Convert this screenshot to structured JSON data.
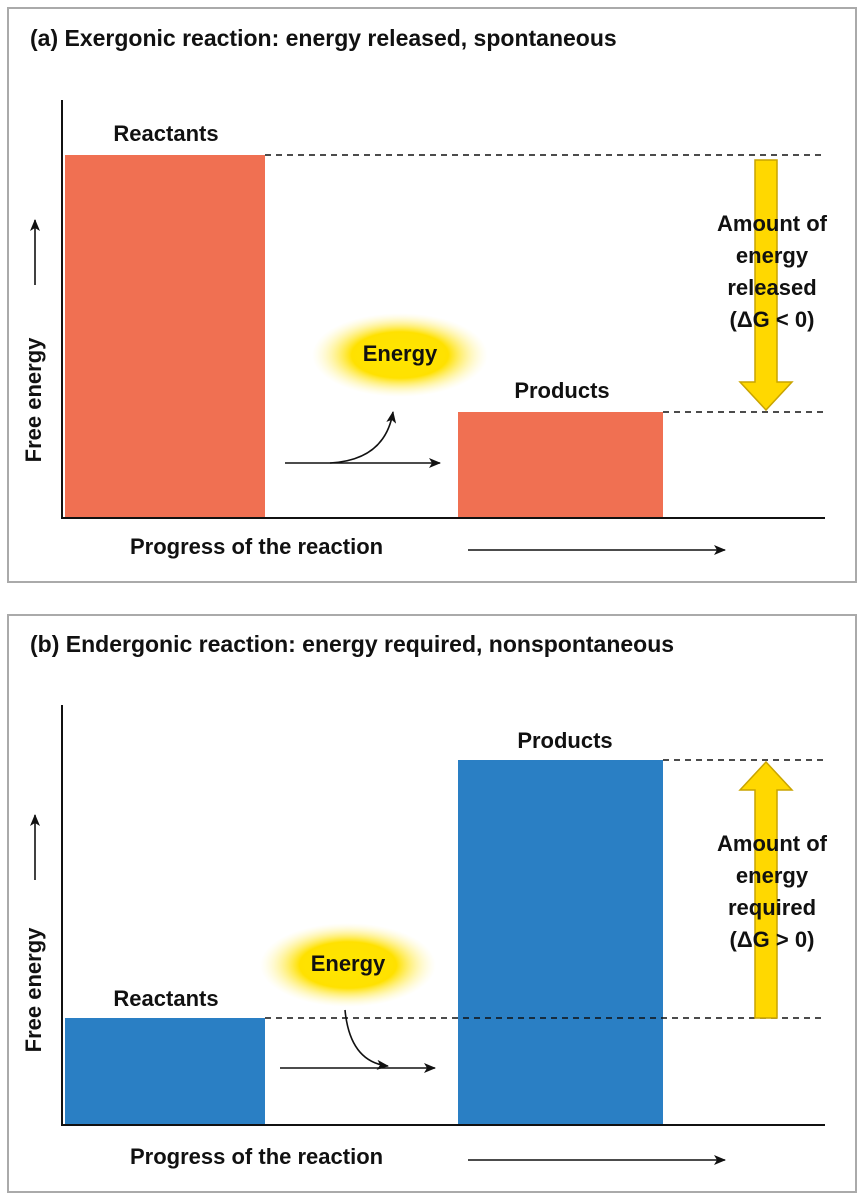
{
  "panels": [
    {
      "title": "(a) Exergonic reaction: energy released, spontaneous",
      "y_axis_label": "Free energy",
      "x_axis_label": "Progress of the reaction",
      "reactants_label": "Reactants",
      "products_label": "Products",
      "energy_label": "Energy",
      "annotation": [
        "Amount of",
        "energy",
        "released",
        "(ΔG < 0)"
      ]
    },
    {
      "title": "(b) Endergonic reaction: energy required, nonspontaneous",
      "y_axis_label": "Free energy",
      "x_axis_label": "Progress of the reaction",
      "reactants_label": "Reactants",
      "products_label": "Products",
      "energy_label": "Energy",
      "annotation": [
        "Amount of",
        "energy",
        "required",
        "(ΔG > 0)"
      ]
    }
  ]
}
